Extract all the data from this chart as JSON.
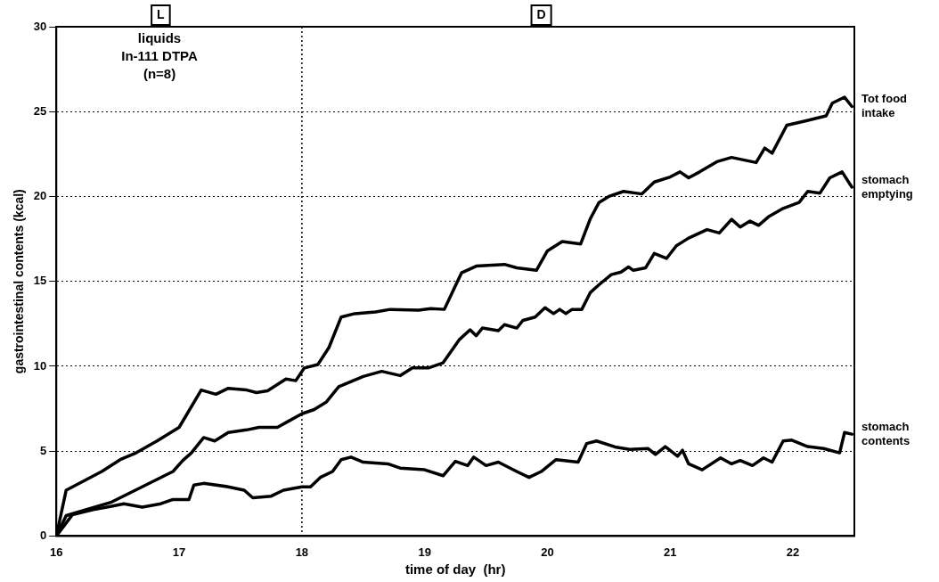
{
  "chart_data": {
    "type": "line",
    "xlabel": "time of day  (hr)",
    "ylabel": "gastrointestinal contents (kcal)",
    "xlim": [
      16,
      22.5
    ],
    "xticks": [
      16,
      17,
      18,
      19,
      20,
      21,
      22
    ],
    "ylim": [
      0,
      30
    ],
    "yticks": [
      0,
      5,
      10,
      15,
      20,
      25,
      30
    ],
    "grid": "y",
    "legend": false,
    "marker": "none",
    "line_style": "solid",
    "ref_lines": [
      {
        "axis": "x",
        "value": 18,
        "line_style": "dotted",
        "color": "#000000"
      }
    ],
    "annotations": [
      {
        "text": "L",
        "x": 16.85
      },
      {
        "text": "D",
        "x": 19.95
      },
      "liquids",
      "In-111 DTPA",
      "(n=8)"
    ],
    "series": [
      {
        "name": "Tot food intake",
        "color": "#000000",
        "x": [
          16,
          16.08,
          16.37,
          16.52,
          16.65,
          16.82,
          17.0,
          17.18,
          17.3,
          17.4,
          17.55,
          17.63,
          17.72,
          17.87,
          17.95,
          18.02,
          18.13,
          18.22,
          18.32,
          18.43,
          18.6,
          18.72,
          18.95,
          19.05,
          19.16,
          19.3,
          19.42,
          19.65,
          19.75,
          19.91,
          20.0,
          20.12,
          20.27,
          20.35,
          20.42,
          20.5,
          20.62,
          20.77,
          20.87,
          21.0,
          21.08,
          21.15,
          21.24,
          21.38,
          21.5,
          21.7,
          21.77,
          21.83,
          21.95,
          22.1,
          22.27,
          22.32,
          22.42,
          22.48
        ],
        "values": [
          0,
          2.7,
          3.8,
          4.5,
          4.9,
          5.6,
          6.4,
          8.6,
          8.35,
          8.7,
          8.6,
          8.45,
          8.55,
          9.25,
          9.15,
          9.9,
          10.1,
          11.1,
          12.9,
          13.1,
          13.2,
          13.35,
          13.3,
          13.4,
          13.35,
          15.5,
          15.9,
          16.0,
          15.8,
          15.65,
          16.8,
          17.35,
          17.2,
          18.7,
          19.65,
          20.0,
          20.3,
          20.15,
          20.85,
          21.15,
          21.45,
          21.1,
          21.45,
          22.05,
          22.3,
          22.0,
          22.85,
          22.55,
          24.2,
          24.45,
          24.75,
          25.5,
          25.85,
          25.3
        ]
      },
      {
        "name": "stomach emptying",
        "color": "#000000",
        "x": [
          16,
          16.08,
          16.45,
          16.95,
          17.03,
          17.1,
          17.2,
          17.29,
          17.4,
          17.55,
          17.65,
          17.8,
          17.9,
          18.0,
          18.1,
          18.2,
          18.3,
          18.4,
          18.5,
          18.65,
          18.8,
          18.9,
          19.03,
          19.15,
          19.28,
          19.37,
          19.42,
          19.47,
          19.6,
          19.65,
          19.75,
          19.8,
          19.9,
          19.98,
          20.05,
          20.1,
          20.15,
          20.2,
          20.28,
          20.35,
          20.42,
          20.52,
          20.6,
          20.66,
          20.7,
          20.8,
          20.87,
          20.97,
          21.05,
          21.15,
          21.3,
          21.4,
          21.5,
          21.57,
          21.65,
          21.72,
          21.8,
          21.92,
          22.05,
          22.12,
          22.22,
          22.3,
          22.4,
          22.48
        ],
        "values": [
          0,
          1.2,
          2.0,
          3.8,
          4.45,
          4.9,
          5.8,
          5.6,
          6.1,
          6.25,
          6.4,
          6.4,
          6.8,
          7.2,
          7.45,
          7.9,
          8.8,
          9.1,
          9.4,
          9.7,
          9.45,
          9.9,
          9.9,
          10.2,
          11.55,
          12.15,
          11.8,
          12.25,
          12.1,
          12.45,
          12.25,
          12.7,
          12.9,
          13.45,
          13.1,
          13.35,
          13.1,
          13.35,
          13.35,
          14.35,
          14.8,
          15.4,
          15.55,
          15.85,
          15.65,
          15.8,
          16.65,
          16.35,
          17.1,
          17.55,
          18.05,
          17.85,
          18.65,
          18.2,
          18.55,
          18.3,
          18.8,
          19.3,
          19.65,
          20.3,
          20.2,
          21.1,
          21.45,
          20.55
        ]
      },
      {
        "name": "stomach contents",
        "color": "#000000",
        "x": [
          16,
          16.13,
          16.3,
          16.45,
          16.55,
          16.7,
          16.85,
          16.95,
          17.08,
          17.12,
          17.2,
          17.4,
          17.53,
          17.6,
          17.75,
          17.85,
          18.0,
          18.07,
          18.15,
          18.25,
          18.32,
          18.4,
          18.5,
          18.7,
          18.8,
          19.0,
          19.15,
          19.25,
          19.35,
          19.4,
          19.5,
          19.6,
          19.75,
          19.85,
          19.95,
          20.07,
          20.25,
          20.32,
          20.4,
          20.55,
          20.67,
          20.82,
          20.88,
          20.96,
          21.06,
          21.1,
          21.15,
          21.26,
          21.41,
          21.5,
          21.57,
          21.67,
          21.76,
          21.83,
          21.92,
          21.99,
          22.12,
          22.25,
          22.38,
          22.42,
          22.48
        ],
        "values": [
          0,
          1.25,
          1.55,
          1.75,
          1.9,
          1.7,
          1.9,
          2.15,
          2.15,
          3.0,
          3.1,
          2.9,
          2.7,
          2.25,
          2.35,
          2.7,
          2.9,
          2.9,
          3.45,
          3.8,
          4.5,
          4.65,
          4.35,
          4.25,
          4.0,
          3.9,
          3.55,
          4.4,
          4.15,
          4.65,
          4.15,
          4.35,
          3.8,
          3.45,
          3.8,
          4.5,
          4.35,
          5.45,
          5.6,
          5.25,
          5.1,
          5.15,
          4.8,
          5.27,
          4.7,
          5.05,
          4.25,
          3.9,
          4.6,
          4.25,
          4.45,
          4.15,
          4.6,
          4.35,
          5.6,
          5.65,
          5.27,
          5.15,
          4.9,
          6.1,
          6.0
        ]
      }
    ]
  }
}
